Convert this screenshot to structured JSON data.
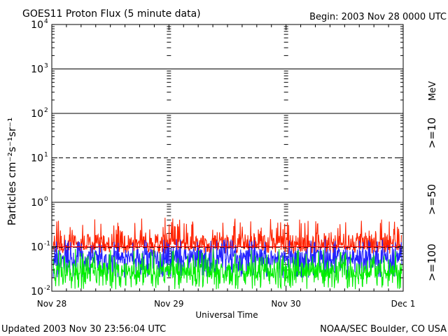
{
  "header": {
    "title": "GOES11 Proton Flux (5 minute data)",
    "begin": "Begin: 2003 Nov 28 0000 UTC"
  },
  "footer": {
    "updated": "Updated 2003 Nov 30 23:56:04 UTC",
    "source": "NOAA/SEC Boulder, CO USA"
  },
  "legend": {
    "unit": "MeV",
    "items": [
      {
        "label": ">=10",
        "color": "#ff2200"
      },
      {
        "label": ">=50",
        "color": "#2222ff"
      },
      {
        "label": ">=100",
        "color": "#00ee00"
      }
    ]
  },
  "colors": {
    "frame": "#000000",
    "threshold_line": "#ff0000"
  },
  "chart_data": {
    "type": "line",
    "title": "GOES11 Proton Flux (5 minute data)",
    "xlabel": "Universal Time",
    "ylabel": "Particles cm⁻²s⁻¹sr⁻¹",
    "y_scale": "log",
    "ylim": [
      0.01,
      10000
    ],
    "x_days": [
      "Nov 28",
      "Nov 29",
      "Nov 30",
      "Dec 1"
    ],
    "xlim": [
      "2003-11-28T00:00",
      "2003-12-01T00:00"
    ],
    "y_ticks": [
      {
        "base": "10",
        "exp": "-2",
        "value": 0.01
      },
      {
        "base": "10",
        "exp": "-1",
        "value": 0.1
      },
      {
        "base": "10",
        "exp": "0",
        "value": 1
      },
      {
        "base": "10",
        "exp": "1",
        "value": 10
      },
      {
        "base": "10",
        "exp": "2",
        "value": 100
      },
      {
        "base": "10",
        "exp": "3",
        "value": 1000
      },
      {
        "base": "10",
        "exp": "4",
        "value": 10000
      }
    ],
    "solid_gridlines": [
      1,
      100,
      1000
    ],
    "dashed_gridlines": [
      10
    ],
    "threshold_line": 0.1,
    "series": [
      {
        "name": ">=10 MeV",
        "color": "#ff2200",
        "typical": 0.13,
        "min": 0.07,
        "max": 0.45
      },
      {
        "name": ">=50 MeV",
        "color": "#2222ff",
        "typical": 0.06,
        "min": 0.02,
        "max": 0.15
      },
      {
        "name": ">=100 MeV",
        "color": "#00ee00",
        "typical": 0.03,
        "min": 0.011,
        "max": 0.09
      }
    ]
  }
}
